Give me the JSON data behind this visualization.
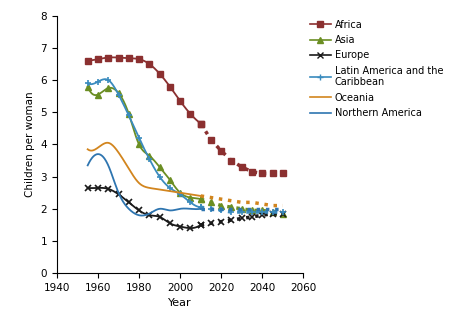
{
  "xlabel": "Year",
  "ylabel": "Children per woman",
  "xlim": [
    1940,
    2060
  ],
  "ylim": [
    0,
    8
  ],
  "yticks": [
    0,
    1,
    2,
    3,
    4,
    5,
    6,
    7,
    8
  ],
  "xticks": [
    1940,
    1960,
    1980,
    2000,
    2020,
    2040,
    2060
  ],
  "africa_solid": {
    "x": [
      1955,
      1960,
      1965,
      1970,
      1975,
      1980,
      1985,
      1990,
      1995,
      2000,
      2005,
      2010
    ],
    "y": [
      6.6,
      6.65,
      6.7,
      6.7,
      6.68,
      6.65,
      6.5,
      6.2,
      5.8,
      5.35,
      4.95,
      4.65
    ],
    "color": "#8B3030",
    "marker": "s",
    "linestyle": "-"
  },
  "africa_dashed": {
    "x": [
      2010,
      2015,
      2020,
      2025,
      2030,
      2035,
      2040,
      2045,
      2050
    ],
    "y": [
      4.65,
      4.15,
      3.8,
      3.5,
      3.3,
      3.15,
      3.1,
      3.1,
      3.1
    ],
    "color": "#8B3030",
    "marker": "s",
    "linestyle": ":"
  },
  "asia_solid": {
    "x": [
      1955,
      1960,
      1965,
      1970,
      1975,
      1980,
      1985,
      1990,
      1995,
      2000,
      2005,
      2010
    ],
    "y": [
      5.8,
      5.55,
      5.75,
      5.6,
      4.95,
      4.0,
      3.65,
      3.3,
      2.9,
      2.5,
      2.35,
      2.3
    ],
    "color": "#6B8E23",
    "marker": "^",
    "linestyle": "-"
  },
  "asia_dashed": {
    "x": [
      2010,
      2015,
      2020,
      2025,
      2030,
      2035,
      2040,
      2045,
      2050
    ],
    "y": [
      2.3,
      2.2,
      2.1,
      2.05,
      2.0,
      1.95,
      1.95,
      1.9,
      1.85
    ],
    "color": "#6B8E23",
    "marker": "^",
    "linestyle": ":"
  },
  "europe_solid": {
    "x": [
      1955,
      1960,
      1965,
      1970,
      1975,
      1980,
      1985,
      1990,
      1995,
      2000,
      2005,
      2010
    ],
    "y": [
      2.65,
      2.65,
      2.62,
      2.45,
      2.2,
      1.95,
      1.8,
      1.75,
      1.55,
      1.45,
      1.4,
      1.5
    ],
    "color": "#1a1a1a",
    "marker": "x",
    "linestyle": "-"
  },
  "europe_dashed": {
    "x": [
      2010,
      2015,
      2020,
      2025,
      2030,
      2035,
      2040,
      2045,
      2050
    ],
    "y": [
      1.5,
      1.55,
      1.6,
      1.65,
      1.7,
      1.75,
      1.8,
      1.85,
      1.85
    ],
    "color": "#1a1a1a",
    "marker": "x",
    "linestyle": ":"
  },
  "latam_solid": {
    "x": [
      1955,
      1960,
      1965,
      1970,
      1975,
      1980,
      1985,
      1990,
      1995,
      2000,
      2005,
      2010
    ],
    "y": [
      5.9,
      5.95,
      6.0,
      5.55,
      4.9,
      4.2,
      3.55,
      3.0,
      2.65,
      2.45,
      2.2,
      2.05
    ],
    "color": "#3A8BBE",
    "marker": "+",
    "linestyle": "-"
  },
  "latam_dashed": {
    "x": [
      2010,
      2015,
      2020,
      2025,
      2030,
      2035,
      2040,
      2045,
      2050
    ],
    "y": [
      2.05,
      2.0,
      1.95,
      1.9,
      1.9,
      1.9,
      1.9,
      1.9,
      1.9
    ],
    "color": "#3A8BBE",
    "marker": "+",
    "linestyle": ":"
  },
  "oceania_solid": {
    "x": [
      1955,
      1960,
      1965,
      1970,
      1975,
      1980,
      1985,
      1990,
      1995,
      2000,
      2005,
      2010
    ],
    "y": [
      3.85,
      3.9,
      4.05,
      3.75,
      3.25,
      2.8,
      2.65,
      2.6,
      2.55,
      2.5,
      2.45,
      2.4
    ],
    "color": "#D2851E",
    "marker": null,
    "linestyle": "-"
  },
  "oceania_dashed": {
    "x": [
      2010,
      2015,
      2020,
      2025,
      2030,
      2035,
      2040,
      2045,
      2050
    ],
    "y": [
      2.4,
      2.35,
      2.3,
      2.25,
      2.2,
      2.2,
      2.15,
      2.1,
      2.1
    ],
    "color": "#D2851E",
    "marker": null,
    "linestyle": ":"
  },
  "northam_solid": {
    "x": [
      1955,
      1960,
      1965,
      1970,
      1975,
      1980,
      1985,
      1990,
      1995,
      2000,
      2005,
      2010
    ],
    "y": [
      3.35,
      3.7,
      3.35,
      2.5,
      2.0,
      1.8,
      1.85,
      2.0,
      1.95,
      2.0,
      2.0,
      2.0
    ],
    "color": "#2E75B0",
    "marker": null,
    "linestyle": "-"
  },
  "northam_dashed": {
    "x": [
      2010,
      2015,
      2020,
      2025,
      2030,
      2035,
      2040,
      2045,
      2050
    ],
    "y": [
      2.0,
      2.0,
      2.0,
      2.0,
      2.0,
      2.0,
      2.0,
      2.0,
      2.0
    ],
    "color": "#2E75B0",
    "marker": null,
    "linestyle": ":"
  },
  "legend_entries": [
    {
      "label": "Africa",
      "color": "#8B3030",
      "marker": "s"
    },
    {
      "label": "Asia",
      "color": "#6B8E23",
      "marker": "^"
    },
    {
      "label": "Europe",
      "color": "#1a1a1a",
      "marker": "x"
    },
    {
      "label": "Latin America and the\nCaribbean",
      "color": "#3A8BBE",
      "marker": "+"
    },
    {
      "label": "Oceania",
      "color": "#D2851E",
      "marker": null
    },
    {
      "label": "Northern America",
      "color": "#2E75B0",
      "marker": null
    }
  ]
}
